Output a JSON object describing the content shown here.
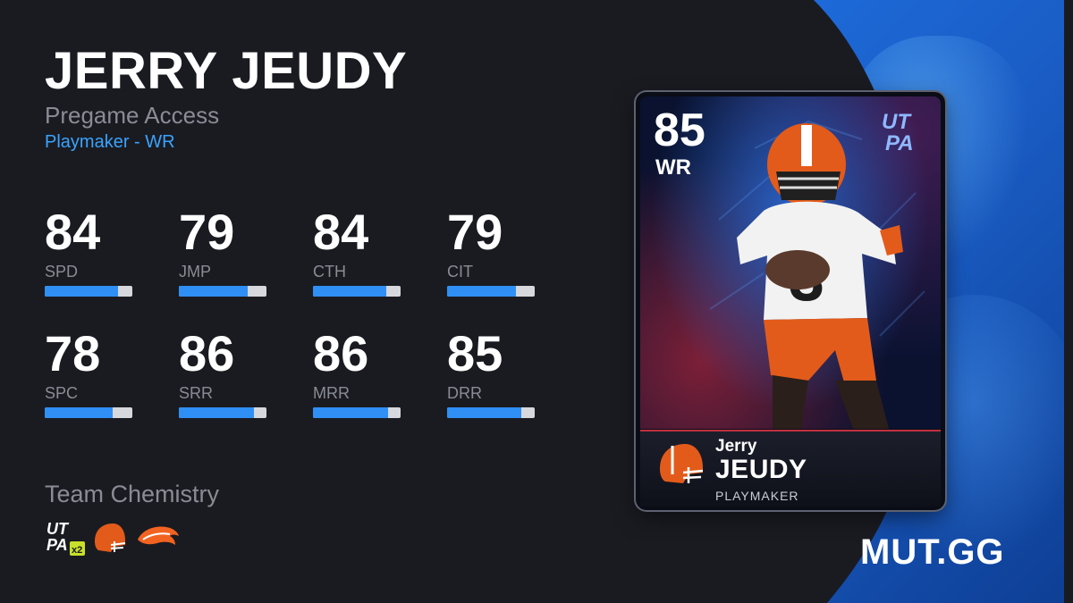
{
  "player": {
    "name": "JERRY JEUDY",
    "program": "Pregame Access",
    "archetype": "Playmaker - WR"
  },
  "stats": [
    {
      "value": "84",
      "label": "SPD",
      "fraction": 0.84
    },
    {
      "value": "79",
      "label": "JMP",
      "fraction": 0.79
    },
    {
      "value": "84",
      "label": "CTH",
      "fraction": 0.84
    },
    {
      "value": "79",
      "label": "CIT",
      "fraction": 0.79
    },
    {
      "value": "78",
      "label": "SPC",
      "fraction": 0.78
    },
    {
      "value": "86",
      "label": "SRR",
      "fraction": 0.86
    },
    {
      "value": "86",
      "label": "MRR",
      "fraction": 0.86
    },
    {
      "value": "85",
      "label": "DRR",
      "fraction": 0.85
    }
  ],
  "chemistry": {
    "title": "Team Chemistry",
    "utpa_multiplier": "x2",
    "icons": [
      "utpa-logo-icon",
      "browns-helmet-icon",
      "broncos-logo-icon"
    ]
  },
  "card": {
    "rating": "85",
    "position": "WR",
    "program_logo_text": [
      "UT",
      "PA"
    ],
    "first_name": "Jerry",
    "last_name": "JEUDY",
    "archetype": "PLAYMAKER",
    "jersey_number": "3"
  },
  "site": {
    "logo": "MUT.GG"
  },
  "colors": {
    "accent_blue": "#3aa3ff",
    "bar_fill": "#2f8ff5",
    "browns_orange": "#e35b1a",
    "broncos_orange": "#f26322",
    "background": "#1a1b21"
  }
}
